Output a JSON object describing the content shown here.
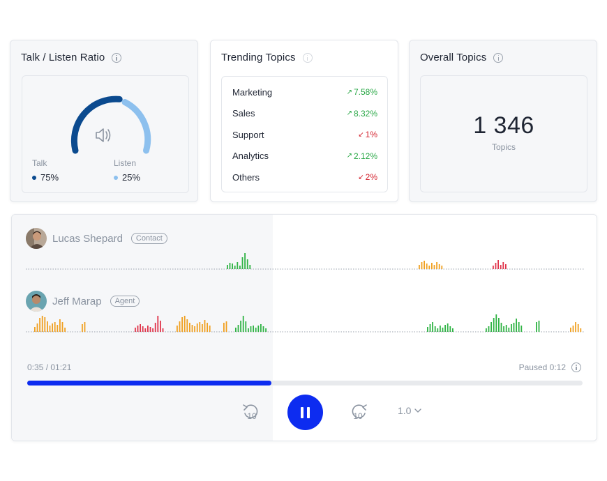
{
  "talk_listen": {
    "title": "Talk / Listen Ratio",
    "talk_label": "Talk",
    "talk_value": "75%",
    "talk_fraction": 0.75,
    "listen_label": "Listen",
    "listen_value": "25%",
    "talk_color": "#0b4a8f",
    "listen_color": "#8dc0ee"
  },
  "trending": {
    "title": "Trending Topics",
    "topics": [
      {
        "name": "Marketing",
        "change": "7.58%",
        "direction": "up"
      },
      {
        "name": "Sales",
        "change": "8.32%",
        "direction": "up"
      },
      {
        "name": "Support",
        "change": "1%",
        "direction": "down"
      },
      {
        "name": "Analytics",
        "change": "2.12%",
        "direction": "up"
      },
      {
        "name": "Others",
        "change": "2%",
        "direction": "down"
      }
    ]
  },
  "overall": {
    "title": "Overall Topics",
    "count": "1 346",
    "unit": "Topics"
  },
  "player": {
    "speakers": [
      {
        "name": "Lucas Shepard",
        "role": "Contact"
      },
      {
        "name": "Jeff Marap",
        "role": "Agent"
      }
    ],
    "elapsed": "0:35 / 01:21",
    "status": "Paused 0:12",
    "progress_fraction": 0.44,
    "speed": "1.0",
    "rewind_seconds": "10",
    "forward_seconds": "10",
    "accent_color": "#0d2cf0",
    "wave_colors": {
      "green": "#2fb344",
      "orange": "#f0a020",
      "red": "#e0334a"
    }
  }
}
